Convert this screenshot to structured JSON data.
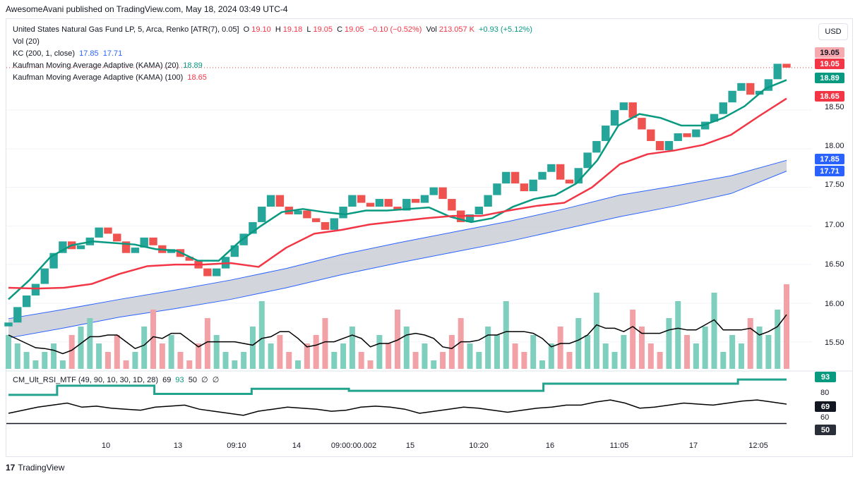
{
  "header": {
    "text": "AwesomeAvani published on TradingView.com, May 18, 2024 03:49 UTC-4"
  },
  "currency": "USD",
  "legend": {
    "symbol": "United States Natural Gas Fund LP, 5, Arca, Renko [ATR(7), 0.05]",
    "o_label": "O",
    "o_value": "19.10",
    "h_label": "H",
    "h_value": "19.18",
    "l_label": "L",
    "l_value": "19.05",
    "c_label": "C",
    "c_value": "19.05",
    "change": "−0.10 (−0.52%)",
    "vol_label": "Vol",
    "vol_value": "213.057 K",
    "vol_change": "+0.93 (+5.12%)",
    "line2": "Vol (20)",
    "kc_label": "KC (200, 1, close)",
    "kc_upper": "17.85",
    "kc_lower": "17.71",
    "kama20_label": "Kaufman Moving Average Adaptive (KAMA) (20)",
    "kama20_value": "18.89",
    "kama100_label": "Kaufman Moving Average Adaptive (KAMA) (100)",
    "kama100_value": "18.65"
  },
  "price_labels": {
    "last_high": "19.05",
    "last": "19.05",
    "kama20": "18.89",
    "kama100": "18.65",
    "kc_upper": "17.85",
    "kc_lower": "17.71"
  },
  "price_ticks": [
    "18.50",
    "18.00",
    "17.50",
    "17.00",
    "16.50",
    "16.00",
    "15.50"
  ],
  "rsi": {
    "label": "CM_Ult_RSI_MTF (49, 90, 10, 30, 1D, 28)",
    "values_text": "69  93  50  ∅  ∅",
    "v1": "69",
    "v2": "93",
    "v3": "50",
    "ticks": [
      "80",
      "60"
    ],
    "badge_93": "93",
    "badge_69": "69",
    "badge_50": "50"
  },
  "x_ticks": [
    "10",
    "13",
    "09:10",
    "14",
    "09:00:00.002",
    "15",
    "10:20",
    "16",
    "11:05",
    "17",
    "12:05"
  ],
  "footer": {
    "brand": "TradingView"
  },
  "colors": {
    "up": "#26a69a",
    "down": "#ef5350",
    "kama20": "#089981",
    "kama100": "#f23645",
    "kc": "#2962ff",
    "kc_fill": "#c8cad3",
    "vol_up": "#7fcfbf",
    "vol_down": "#f2a1a6"
  },
  "chart_data": {
    "type": "line",
    "title": "United States Natural Gas Fund LP, 5, Arca, Renko [ATR(7), 0.05]",
    "ylim": [
      15.15,
      19.25
    ],
    "renko_close": [
      15.75,
      15.95,
      16.1,
      16.25,
      16.45,
      16.65,
      16.8,
      16.7,
      16.75,
      16.85,
      16.98,
      16.9,
      16.8,
      16.65,
      16.72,
      16.85,
      16.75,
      16.65,
      16.7,
      16.6,
      16.55,
      16.45,
      16.35,
      16.45,
      16.6,
      16.75,
      16.9,
      17.05,
      17.25,
      17.4,
      17.25,
      17.15,
      17.2,
      17.1,
      17.05,
      16.95,
      17.1,
      17.25,
      17.4,
      17.3,
      17.25,
      17.35,
      17.25,
      17.2,
      17.35,
      17.3,
      17.4,
      17.5,
      17.35,
      17.2,
      17.05,
      17.15,
      17.25,
      17.4,
      17.55,
      17.7,
      17.55,
      17.45,
      17.6,
      17.7,
      17.8,
      17.6,
      17.55,
      17.75,
      17.95,
      18.1,
      18.3,
      18.5,
      18.6,
      18.4,
      18.25,
      18.1,
      17.98,
      18.1,
      18.2,
      18.15,
      18.25,
      18.35,
      18.45,
      18.6,
      18.75,
      18.85,
      18.7,
      18.75,
      18.9,
      19.1,
      19.05
    ],
    "kama20": [
      16.05,
      16.3,
      16.6,
      16.75,
      16.8,
      16.78,
      16.76,
      16.7,
      16.68,
      16.55,
      16.55,
      16.8,
      17.0,
      17.18,
      17.22,
      17.18,
      17.15,
      17.2,
      17.2,
      17.22,
      17.24,
      17.12,
      17.05,
      17.1,
      17.25,
      17.35,
      17.4,
      17.55,
      17.85,
      18.3,
      18.45,
      18.4,
      18.3,
      18.3,
      18.4,
      18.55,
      18.78,
      18.89
    ],
    "kama100": [
      16.2,
      16.19,
      16.2,
      16.25,
      16.38,
      16.48,
      16.5,
      16.5,
      16.52,
      16.47,
      16.72,
      16.9,
      16.95,
      17.02,
      17.06,
      17.1,
      17.13,
      17.13,
      17.2,
      17.26,
      17.3,
      17.5,
      17.8,
      17.93,
      17.98,
      18.05,
      18.18,
      18.42,
      18.65
    ],
    "kc_upper": [
      15.8,
      15.92,
      16.05,
      16.17,
      16.3,
      16.45,
      16.63,
      16.78,
      16.92,
      17.06,
      17.22,
      17.4,
      17.52,
      17.65,
      17.85
    ],
    "kc_lower": [
      15.55,
      15.68,
      15.82,
      15.93,
      16.05,
      16.2,
      16.37,
      16.52,
      16.66,
      16.8,
      16.96,
      17.12,
      17.26,
      17.42,
      17.71
    ],
    "volume": [
      4,
      3,
      2,
      1,
      2,
      3,
      1,
      4,
      5,
      6,
      3,
      2,
      4,
      1,
      2,
      5,
      7,
      3,
      4,
      2,
      1,
      3,
      6,
      4,
      2,
      1,
      2,
      5,
      8,
      3,
      4,
      2,
      1,
      3,
      4,
      6,
      2,
      3,
      5,
      2,
      1,
      4,
      3,
      7,
      5,
      2,
      3,
      1,
      2,
      4,
      6,
      3,
      2,
      5,
      4,
      8,
      3,
      2,
      4,
      1,
      3,
      5,
      2,
      6,
      4,
      9,
      3,
      2,
      4,
      7,
      5,
      3,
      2,
      6,
      8,
      4,
      3,
      5,
      9,
      2,
      4,
      3,
      6,
      5,
      4,
      7,
      10
    ],
    "rsi_fast": [
      60,
      63,
      66,
      68,
      70,
      66,
      67,
      65,
      64,
      63,
      66,
      67,
      68,
      64,
      62,
      60,
      58,
      62,
      64,
      66,
      65,
      64,
      62,
      63,
      66,
      67,
      66,
      64,
      60,
      62,
      64,
      66,
      65,
      63,
      61,
      63,
      65,
      66,
      68,
      68,
      71,
      73,
      70,
      65,
      66,
      68,
      70,
      69,
      68,
      70,
      72,
      73,
      71,
      69
    ],
    "rsi_slow": [
      78,
      78,
      87,
      87,
      87,
      87,
      79,
      79,
      79,
      79,
      84,
      84,
      84,
      84,
      82,
      82,
      82,
      82,
      82,
      82,
      82,
      82,
      89,
      89,
      89,
      89,
      89,
      89,
      89,
      89,
      93,
      93,
      93
    ]
  }
}
